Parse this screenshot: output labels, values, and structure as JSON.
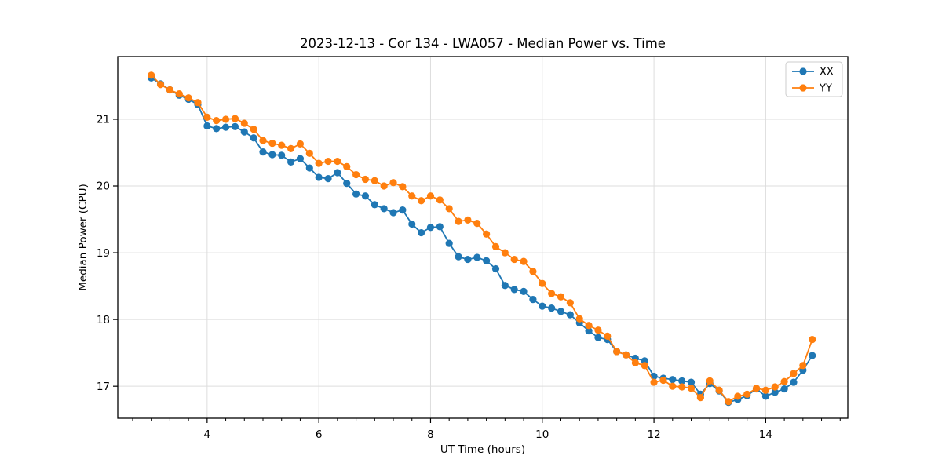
{
  "chart_data": {
    "type": "line",
    "title": "2023-12-13 - Cor 134 - LWA057 - Median Power vs. Time",
    "xlabel": "UT Time (hours)",
    "ylabel": "Median Power (CPU)",
    "xlim": [
      2.4,
      15.47
    ],
    "ylim": [
      16.52,
      21.94
    ],
    "xticks": [
      4,
      6,
      8,
      10,
      12,
      14
    ],
    "yticks": [
      17,
      18,
      19,
      20,
      21
    ],
    "x_minor_tick_step": 0.33333,
    "grid": true,
    "grid_color": "#dddddd",
    "legend": {
      "position": "upper right"
    },
    "x": [
      3.0,
      3.1667,
      3.3333,
      3.5,
      3.6667,
      3.8333,
      4.0,
      4.1667,
      4.3333,
      4.5,
      4.6667,
      4.8333,
      5.0,
      5.1667,
      5.3333,
      5.5,
      5.6667,
      5.8333,
      6.0,
      6.1667,
      6.3333,
      6.5,
      6.6667,
      6.8333,
      7.0,
      7.1667,
      7.3333,
      7.5,
      7.6667,
      7.8333,
      8.0,
      8.1667,
      8.3333,
      8.5,
      8.6667,
      8.8333,
      9.0,
      9.1667,
      9.3333,
      9.5,
      9.6667,
      9.8333,
      10.0,
      10.1667,
      10.3333,
      10.5,
      10.6667,
      10.8333,
      11.0,
      11.1667,
      11.3333,
      11.5,
      11.6667,
      11.8333,
      12.0,
      12.1667,
      12.3333,
      12.5,
      12.6667,
      12.8333,
      13.0,
      13.1667,
      13.3333,
      13.5,
      13.6667,
      13.8333,
      14.0,
      14.1667,
      14.3333,
      14.5,
      14.6667,
      14.8333
    ],
    "series": [
      {
        "name": "XX",
        "color": "#1f77b4",
        "marker": "circle",
        "values": [
          21.62,
          21.53,
          21.44,
          21.36,
          21.3,
          21.22,
          20.9,
          20.86,
          20.88,
          20.89,
          20.81,
          20.72,
          20.51,
          20.47,
          20.46,
          20.36,
          20.41,
          20.27,
          20.13,
          20.11,
          20.2,
          20.04,
          19.88,
          19.85,
          19.72,
          19.66,
          19.6,
          19.64,
          19.43,
          19.3,
          19.38,
          19.39,
          19.14,
          18.94,
          18.9,
          18.93,
          18.88,
          18.76,
          18.51,
          18.45,
          18.42,
          18.3,
          18.2,
          18.17,
          18.12,
          18.07,
          17.95,
          17.83,
          17.73,
          17.7,
          17.52,
          17.47,
          17.42,
          17.38,
          17.15,
          17.12,
          17.1,
          17.08,
          17.06,
          16.88,
          17.04,
          16.93,
          16.76,
          16.8,
          16.86,
          16.96,
          16.85,
          16.91,
          16.96,
          17.06,
          17.24,
          17.46
        ]
      },
      {
        "name": "YY",
        "color": "#ff7f0e",
        "marker": "circle",
        "values": [
          21.66,
          21.52,
          21.44,
          21.38,
          21.32,
          21.25,
          21.03,
          20.98,
          21.0,
          21.01,
          20.94,
          20.85,
          20.68,
          20.64,
          20.61,
          20.56,
          20.63,
          20.49,
          20.34,
          20.37,
          20.37,
          20.29,
          20.17,
          20.1,
          20.08,
          20.0,
          20.05,
          19.99,
          19.85,
          19.78,
          19.85,
          19.79,
          19.66,
          19.47,
          19.49,
          19.44,
          19.28,
          19.09,
          19.0,
          18.9,
          18.87,
          18.72,
          18.54,
          18.39,
          18.34,
          18.25,
          18.01,
          17.91,
          17.84,
          17.75,
          17.52,
          17.47,
          17.35,
          17.31,
          17.06,
          17.09,
          17.0,
          16.99,
          16.97,
          16.83,
          17.08,
          16.94,
          16.77,
          16.85,
          16.88,
          16.97,
          16.94,
          16.99,
          17.07,
          17.19,
          17.31,
          17.7
        ]
      }
    ]
  }
}
